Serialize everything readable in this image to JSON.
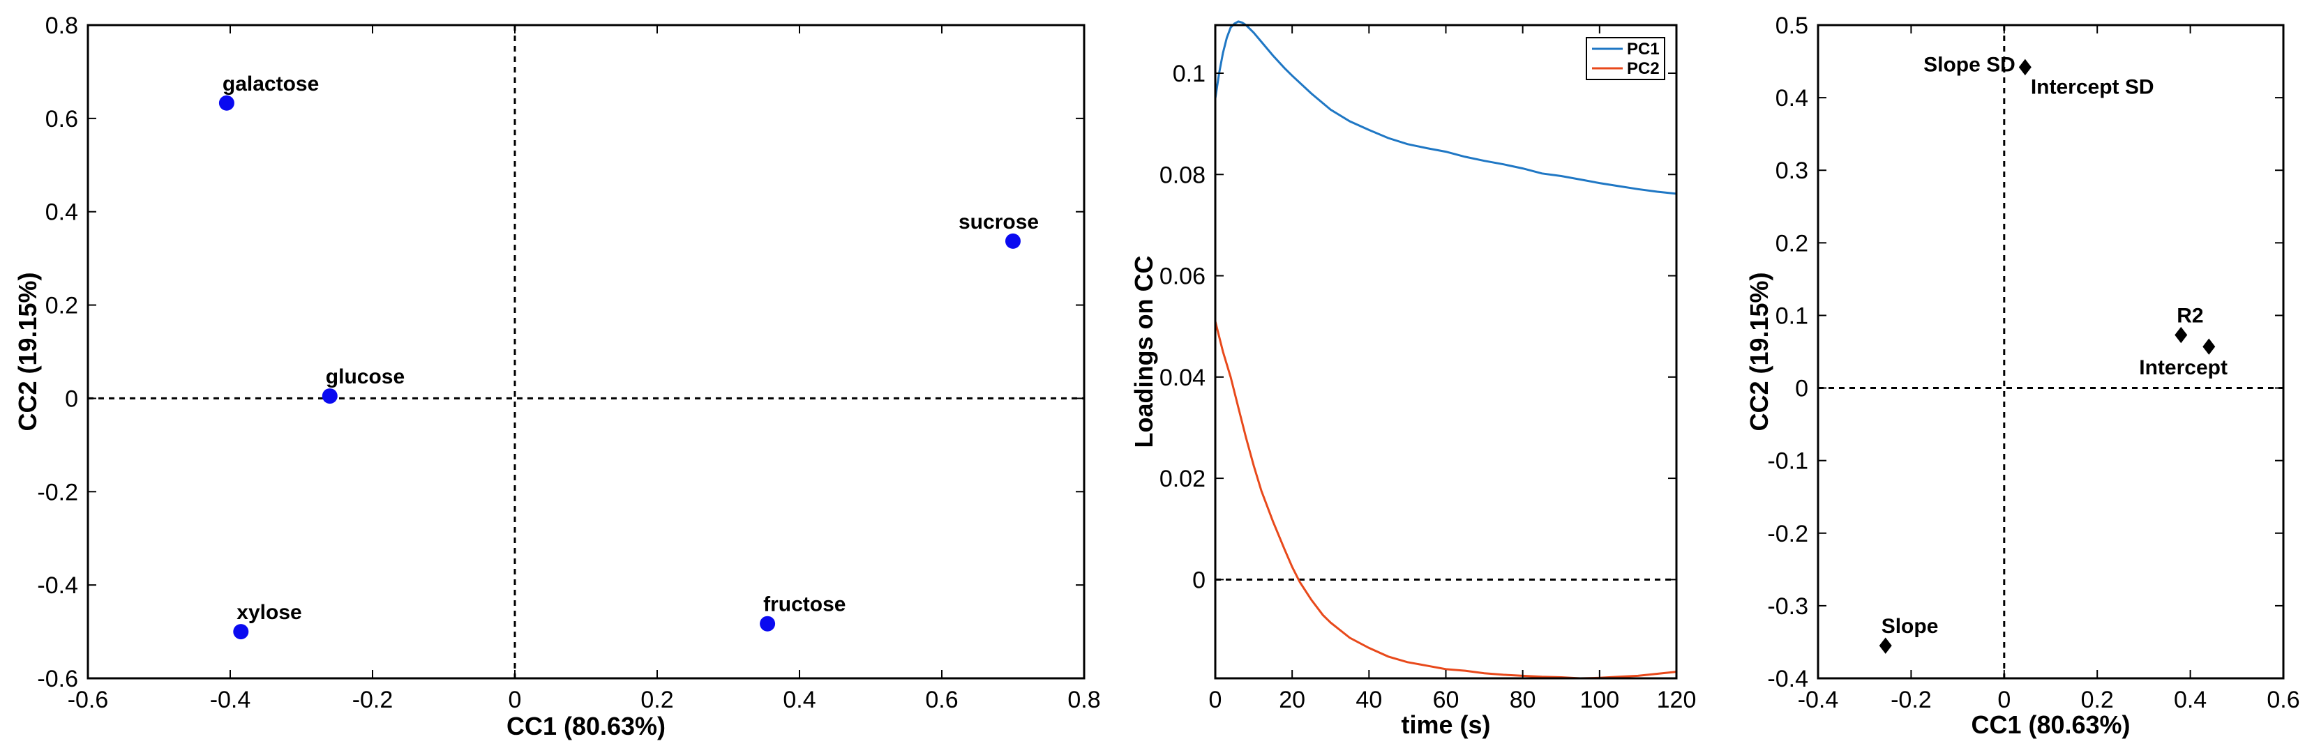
{
  "chart_data": [
    {
      "type": "scatter",
      "xlabel": "CC1 (80.63%)",
      "ylabel": "CC2 (19.15%)",
      "xlim": [
        -0.6,
        0.8
      ],
      "ylim": [
        -0.6,
        0.8
      ],
      "xticks": [
        -0.6,
        -0.4,
        -0.2,
        0,
        0.2,
        0.4,
        0.6,
        0.8
      ],
      "yticks": [
        -0.6,
        -0.4,
        -0.2,
        0,
        0.2,
        0.4,
        0.6,
        0.8
      ],
      "xtick_labels": [
        "-0.6",
        "-0.4",
        "-0.2",
        "0",
        "0.2",
        "0.4",
        "0.6",
        "0.8"
      ],
      "ytick_labels": [
        "-0.6",
        "-0.4",
        "-0.2",
        "0",
        "0.2",
        "0.4",
        "0.6",
        "0.8"
      ],
      "marker": "circle",
      "marker_color": "#0a0af0",
      "points": [
        {
          "label": "galactose",
          "x": -0.405,
          "y": 0.633,
          "label_pos": "above-right"
        },
        {
          "label": "sucrose",
          "x": 0.7,
          "y": 0.337,
          "label_pos": "above-left"
        },
        {
          "label": "glucose",
          "x": -0.26,
          "y": 0.005,
          "label_pos": "above-right"
        },
        {
          "label": "xylose",
          "x": -0.385,
          "y": -0.5,
          "label_pos": "above-right"
        },
        {
          "label": "fructose",
          "x": 0.355,
          "y": -0.483,
          "label_pos": "above-right"
        }
      ]
    },
    {
      "type": "line",
      "xlabel": "time (s)",
      "ylabel": "Loadings on CC",
      "xlim": [
        0,
        120
      ],
      "ylim": [
        -0.0195,
        0.1095
      ],
      "xticks": [
        0,
        20,
        40,
        60,
        80,
        100,
        120
      ],
      "yticks": [
        0,
        0.02,
        0.04,
        0.06,
        0.08,
        0.1
      ],
      "xtick_labels": [
        "0",
        "20",
        "40",
        "60",
        "80",
        "100",
        "120"
      ],
      "ytick_labels": [
        "0",
        "0.02",
        "0.04",
        "0.06",
        "0.08",
        "0.1"
      ],
      "legend": "top-right",
      "series": [
        {
          "name": "PC1",
          "color": "#1f77c4",
          "x": [
            0,
            1,
            2,
            3,
            4,
            5,
            6,
            7,
            8,
            10,
            12,
            15,
            18,
            20,
            25,
            30,
            35,
            40,
            45,
            50,
            55,
            60,
            65,
            70,
            75,
            80,
            85,
            90,
            95,
            100,
            105,
            110,
            115,
            120
          ],
          "y": [
            0.095,
            0.1,
            0.104,
            0.107,
            0.109,
            0.1098,
            0.1102,
            0.11,
            0.1095,
            0.108,
            0.1062,
            0.1035,
            0.101,
            0.0995,
            0.096,
            0.0928,
            0.0905,
            0.0888,
            0.0872,
            0.086,
            0.0852,
            0.0845,
            0.0835,
            0.0827,
            0.082,
            0.0812,
            0.0802,
            0.0797,
            0.079,
            0.0783,
            0.0777,
            0.0771,
            0.0766,
            0.0762
          ]
        },
        {
          "name": "PC2",
          "color": "#e8491b",
          "x": [
            0,
            2,
            4,
            6,
            8,
            10,
            12,
            15,
            18,
            20,
            22,
            25,
            28,
            30,
            35,
            40,
            45,
            50,
            55,
            60,
            65,
            70,
            75,
            80,
            85,
            90,
            95,
            100,
            105,
            110,
            115,
            120
          ],
          "y": [
            0.051,
            0.045,
            0.04,
            0.034,
            0.028,
            0.0225,
            0.0175,
            0.0115,
            0.006,
            0.0025,
            -0.0005,
            -0.004,
            -0.007,
            -0.0085,
            -0.0115,
            -0.0135,
            -0.0152,
            -0.0163,
            -0.017,
            -0.0177,
            -0.018,
            -0.0185,
            -0.0188,
            -0.019,
            -0.0192,
            -0.0193,
            -0.0195,
            -0.0194,
            -0.0192,
            -0.019,
            -0.0186,
            -0.0182
          ]
        }
      ]
    },
    {
      "type": "scatter",
      "xlabel": "CC1 (80.63%)",
      "ylabel": "CC2 (19.15%)",
      "xlim": [
        -0.4,
        0.6
      ],
      "ylim": [
        -0.4,
        0.5
      ],
      "xticks": [
        -0.4,
        -0.2,
        0,
        0.2,
        0.4,
        0.6
      ],
      "yticks": [
        -0.4,
        -0.3,
        -0.2,
        -0.1,
        0,
        0.1,
        0.2,
        0.3,
        0.4,
        0.5
      ],
      "xtick_labels": [
        "-0.4",
        "-0.2",
        "0",
        "0.2",
        "0.4",
        "0.6"
      ],
      "ytick_labels": [
        "-0.4",
        "-0.3",
        "-0.2",
        "-0.1",
        "0",
        "0.1",
        "0.2",
        "0.3",
        "0.4",
        "0.5"
      ],
      "marker": "diamond",
      "marker_color": "#000000",
      "points": [
        {
          "label": "Slope SD",
          "x": 0.045,
          "y": 0.442,
          "label_pos": "left"
        },
        {
          "label": "Intercept SD",
          "x": 0.045,
          "y": 0.442,
          "label_pos": "below-right"
        },
        {
          "label": "R2",
          "x": 0.38,
          "y": 0.073,
          "label_pos": "above-right"
        },
        {
          "label": "Intercept",
          "x": 0.44,
          "y": 0.057,
          "label_pos": "below-left"
        },
        {
          "label": "Slope",
          "x": -0.255,
          "y": -0.355,
          "label_pos": "above-right"
        }
      ]
    }
  ]
}
